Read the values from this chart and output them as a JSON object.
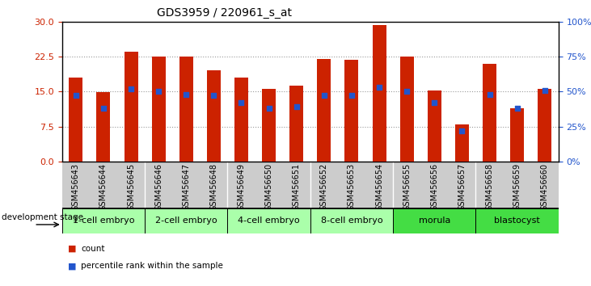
{
  "title": "GDS3959 / 220961_s_at",
  "samples": [
    "GSM456643",
    "GSM456644",
    "GSM456645",
    "GSM456646",
    "GSM456647",
    "GSM456648",
    "GSM456649",
    "GSM456650",
    "GSM456651",
    "GSM456652",
    "GSM456653",
    "GSM456654",
    "GSM456655",
    "GSM456656",
    "GSM456657",
    "GSM456658",
    "GSM456659",
    "GSM456660"
  ],
  "counts": [
    18.0,
    14.8,
    23.5,
    22.5,
    22.5,
    19.5,
    18.0,
    15.5,
    16.2,
    22.0,
    21.8,
    29.3,
    22.5,
    15.3,
    8.0,
    21.0,
    11.5,
    15.5
  ],
  "percentile_ranks": [
    47,
    38,
    52,
    50,
    48,
    47,
    42,
    38,
    39,
    47,
    47,
    53,
    50,
    42,
    22,
    48,
    38,
    51
  ],
  "left_ylim": [
    0,
    30
  ],
  "left_yticks": [
    0,
    7.5,
    15,
    22.5,
    30
  ],
  "right_ylim": [
    0,
    100
  ],
  "right_yticks": [
    0,
    25,
    50,
    75,
    100
  ],
  "bar_color": "#cc2200",
  "dot_color": "#2255cc",
  "bar_width": 0.5,
  "stages": [
    {
      "label": "1-cell embryo",
      "start": 0,
      "end": 3
    },
    {
      "label": "2-cell embryo",
      "start": 3,
      "end": 6
    },
    {
      "label": "4-cell embryo",
      "start": 6,
      "end": 9
    },
    {
      "label": "8-cell embryo",
      "start": 9,
      "end": 12
    },
    {
      "label": "morula",
      "start": 12,
      "end": 15
    },
    {
      "label": "blastocyst",
      "start": 15,
      "end": 18
    }
  ],
  "stage_bg_light": "#aaffaa",
  "stage_bg_dark": "#44dd44",
  "x_label_bg": "#cccccc",
  "grid_color": "#888888",
  "title_fontsize": 10,
  "label_fontsize": 7,
  "stage_fontsize": 8,
  "legend_label_count": "count",
  "legend_label_pct": "percentile rank within the sample",
  "development_stage_label": "development stage"
}
